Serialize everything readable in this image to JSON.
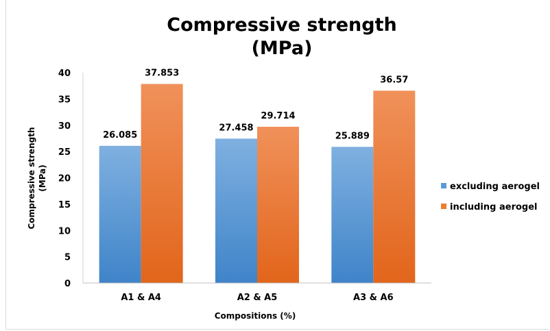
{
  "colors": {
    "excluding": "#5b9bd5",
    "including": "#ed7d31"
  },
  "chart_data": {
    "type": "bar",
    "title_line1": "Compressive strength",
    "title_line2": "(MPa)",
    "xlabel": "Compositions  (%)",
    "ylabel_line1": "Compressive strength",
    "ylabel_line2": "(MPa)",
    "categories": [
      "A1 & A4",
      "A2 & A5",
      "A3 & A6"
    ],
    "series": [
      {
        "name": "excluding aerogel",
        "values": [
          26.085,
          27.458,
          25.889
        ],
        "labels": [
          "26.085",
          "27.458",
          "25.889"
        ]
      },
      {
        "name": "including aerogel",
        "values": [
          37.853,
          29.714,
          36.57
        ],
        "labels": [
          "37.853",
          "29.714",
          "36.57"
        ]
      }
    ],
    "yticks": [
      "0",
      "5",
      "10",
      "15",
      "20",
      "25",
      "30",
      "35",
      "40"
    ],
    "ylim": [
      0,
      40
    ],
    "grid": false,
    "legend_position": "right"
  }
}
